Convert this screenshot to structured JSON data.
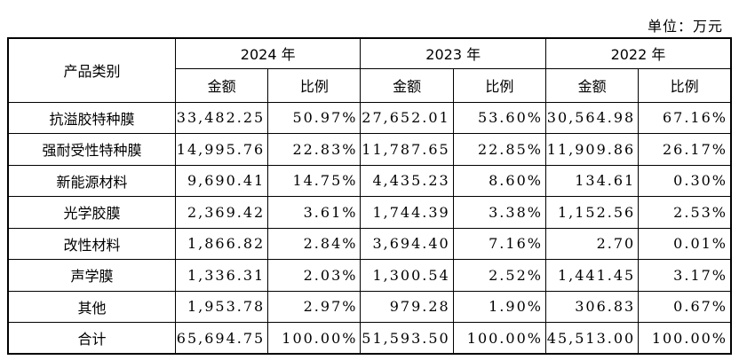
{
  "unit_label": "单位：万元",
  "header": {
    "category": "产品类别",
    "years": [
      "2024 年",
      "2023 年",
      "2022 年"
    ],
    "amount": "金额",
    "ratio": "比例"
  },
  "rows": [
    {
      "name": "抗溢胶特种膜",
      "cells": [
        "33,482.25",
        "50.97%",
        "27,652.01",
        "53.60%",
        "30,564.98",
        "67.16%"
      ]
    },
    {
      "name": "强耐受性特种膜",
      "cells": [
        "14,995.76",
        "22.83%",
        "11,787.65",
        "22.85%",
        "11,909.86",
        "26.17%"
      ]
    },
    {
      "name": "新能源材料",
      "cells": [
        "9,690.41",
        "14.75%",
        "4,435.23",
        "8.60%",
        "134.61",
        "0.30%"
      ]
    },
    {
      "name": "光学胶膜",
      "cells": [
        "2,369.42",
        "3.61%",
        "1,744.39",
        "3.38%",
        "1,152.56",
        "2.53%"
      ]
    },
    {
      "name": "改性材料",
      "cells": [
        "1,866.82",
        "2.84%",
        "3,694.40",
        "7.16%",
        "2.70",
        "0.01%"
      ]
    },
    {
      "name": "声学膜",
      "cells": [
        "1,336.31",
        "2.03%",
        "1,300.54",
        "2.52%",
        "1,441.45",
        "3.17%"
      ]
    },
    {
      "name": "其他",
      "cells": [
        "1,953.78",
        "2.97%",
        "979.28",
        "1.90%",
        "306.83",
        "0.67%"
      ]
    },
    {
      "name": "合计",
      "cells": [
        "65,694.75",
        "100.00%",
        "51,593.50",
        "100.00%",
        "45,513.00",
        "100.00%"
      ]
    }
  ]
}
